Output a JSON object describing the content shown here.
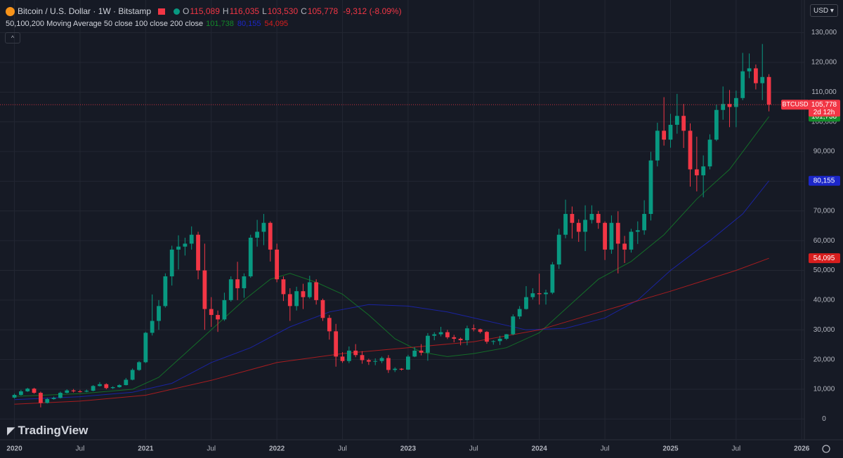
{
  "header": {
    "symbol": "Bitcoin / U.S. Dollar · 1W · Bitstamp",
    "ohlc": [
      {
        "key": "O",
        "value": "115,089"
      },
      {
        "key": "H",
        "value": "116,035"
      },
      {
        "key": "L",
        "value": "103,530"
      },
      {
        "key": "C",
        "value": "105,778"
      }
    ],
    "change": "-9,312 (-8.09%)"
  },
  "indicator": {
    "label": "50,100,200 Moving Average 50 close 100 close 200 close"
  },
  "currency": "USD",
  "brand": "TradingView",
  "chart_data": {
    "type": "candlestick",
    "up_color": "#089981",
    "down_color": "#f23645",
    "xlim": [
      2019.89,
      2026.02
    ],
    "ylim": [
      -7000,
      141000
    ],
    "grid": true,
    "xticks": [
      2020,
      {
        "value": 2020.5,
        "label": "Jul"
      },
      2021,
      {
        "value": 2021.5,
        "label": "Jul"
      },
      2022,
      {
        "value": 2022.5,
        "label": "Jul"
      },
      2023,
      {
        "value": 2023.5,
        "label": "Jul"
      },
      2024,
      {
        "value": 2024.5,
        "label": "Jul"
      },
      2025,
      {
        "value": 2025.5,
        "label": "Jul"
      },
      2026
    ],
    "yticks": [
      0,
      {
        "value": 10000,
        "label": "10,000"
      },
      {
        "value": 20000,
        "label": "20,000"
      },
      {
        "value": 30000,
        "label": "30,000"
      },
      {
        "value": 40000,
        "label": "40,000"
      },
      {
        "value": 50000,
        "label": "50,000"
      },
      {
        "value": 60000,
        "label": "60,000"
      },
      {
        "value": 70000,
        "label": "70,000"
      },
      {
        "value": 80000,
        "label": "80,000"
      },
      {
        "value": 90000,
        "label": "90,000"
      },
      {
        "value": 100000,
        "label": "100,000"
      },
      {
        "value": 110000,
        "label": "110,000"
      },
      {
        "value": 120000,
        "label": "120,000"
      },
      {
        "value": 130000,
        "label": "130,000"
      }
    ],
    "x": [
      2020.0,
      2020.05,
      2020.1,
      2020.15,
      2020.2,
      2020.25,
      2020.3,
      2020.35,
      2020.4,
      2020.45,
      2020.5,
      2020.55,
      2020.6,
      2020.65,
      2020.7,
      2020.75,
      2020.8,
      2020.85,
      2020.9,
      2020.95,
      2021.0,
      2021.05,
      2021.1,
      2021.15,
      2021.2,
      2021.25,
      2021.3,
      2021.35,
      2021.4,
      2021.45,
      2021.5,
      2021.55,
      2021.6,
      2021.65,
      2021.7,
      2021.75,
      2021.8,
      2021.85,
      2021.9,
      2021.95,
      2022.0,
      2022.05,
      2022.1,
      2022.15,
      2022.2,
      2022.25,
      2022.3,
      2022.35,
      2022.4,
      2022.45,
      2022.5,
      2022.55,
      2022.6,
      2022.65,
      2022.7,
      2022.75,
      2022.8,
      2022.85,
      2022.9,
      2022.95,
      2023.0,
      2023.05,
      2023.1,
      2023.15,
      2023.2,
      2023.25,
      2023.3,
      2023.35,
      2023.4,
      2023.45,
      2023.5,
      2023.55,
      2023.6,
      2023.65,
      2023.7,
      2023.75,
      2023.8,
      2023.85,
      2023.9,
      2023.95,
      2024.0,
      2024.05,
      2024.1,
      2024.15,
      2024.2,
      2024.25,
      2024.3,
      2024.35,
      2024.4,
      2024.45,
      2024.5,
      2024.55,
      2024.6,
      2024.65,
      2024.7,
      2024.75,
      2024.8,
      2024.85,
      2024.9,
      2024.95,
      2025.0,
      2025.05,
      2025.1,
      2025.15,
      2025.2,
      2025.25,
      2025.3,
      2025.35,
      2025.4,
      2025.45,
      2025.5,
      2025.55,
      2025.6,
      2025.65,
      2025.7,
      2025.75
    ],
    "ohlc": [
      [
        7200,
        8500,
        6900,
        8100
      ],
      [
        8100,
        9800,
        7900,
        9300
      ],
      [
        9300,
        10500,
        9100,
        10200
      ],
      [
        10200,
        10500,
        8500,
        8800
      ],
      [
        8800,
        9200,
        3900,
        5400
      ],
      [
        5400,
        7100,
        5200,
        6700
      ],
      [
        6700,
        7500,
        6500,
        7100
      ],
      [
        7100,
        9200,
        6900,
        8800
      ],
      [
        8800,
        10000,
        8600,
        9600
      ],
      [
        9600,
        10100,
        8900,
        9300
      ],
      [
        9300,
        9800,
        8900,
        9200
      ],
      [
        9200,
        9900,
        9000,
        9500
      ],
      [
        9500,
        11400,
        9300,
        11100
      ],
      [
        11100,
        12400,
        10900,
        11700
      ],
      [
        11700,
        12000,
        10000,
        10400
      ],
      [
        10400,
        11000,
        10100,
        10700
      ],
      [
        10700,
        11700,
        10500,
        11400
      ],
      [
        11400,
        13800,
        11300,
        13200
      ],
      [
        13200,
        17000,
        13000,
        16500
      ],
      [
        16500,
        19500,
        16200,
        19100
      ],
      [
        19100,
        29300,
        18800,
        29000
      ],
      [
        29000,
        41900,
        28100,
        33000
      ],
      [
        33000,
        40000,
        30000,
        38000
      ],
      [
        38000,
        49000,
        37500,
        48000
      ],
      [
        48000,
        58300,
        44900,
        57000
      ],
      [
        57000,
        61800,
        50300,
        58000
      ],
      [
        58000,
        61000,
        55000,
        59000
      ],
      [
        59000,
        64800,
        57000,
        62000
      ],
      [
        62000,
        63000,
        47000,
        50000
      ],
      [
        50000,
        59000,
        30000,
        37000
      ],
      [
        37000,
        41000,
        31000,
        35000
      ],
      [
        35000,
        36500,
        29300,
        33500
      ],
      [
        33500,
        42500,
        33000,
        40000
      ],
      [
        40000,
        48000,
        39500,
        47000
      ],
      [
        47000,
        52900,
        40000,
        44000
      ],
      [
        44000,
        49000,
        40800,
        48000
      ],
      [
        48000,
        62000,
        47500,
        61000
      ],
      [
        61000,
        67000,
        58000,
        63000
      ],
      [
        63000,
        69000,
        58500,
        66000
      ],
      [
        66000,
        66500,
        53000,
        57000
      ],
      [
        57000,
        59000,
        46000,
        47000
      ],
      [
        47000,
        48000,
        39700,
        42000
      ],
      [
        42000,
        44000,
        33000,
        38000
      ],
      [
        38000,
        44500,
        36500,
        43000
      ],
      [
        43000,
        45500,
        37000,
        41000
      ],
      [
        41000,
        48200,
        40500,
        46000
      ],
      [
        46000,
        47000,
        38500,
        40000
      ],
      [
        40000,
        40500,
        33000,
        34000
      ],
      [
        34000,
        35000,
        26700,
        29500
      ],
      [
        29500,
        32000,
        17600,
        21000
      ],
      [
        21000,
        22500,
        18900,
        19500
      ],
      [
        19500,
        24400,
        18800,
        23000
      ],
      [
        23000,
        25200,
        20800,
        21500
      ],
      [
        21500,
        22800,
        18600,
        19800
      ],
      [
        19800,
        20300,
        18200,
        19300
      ],
      [
        19300,
        20400,
        18100,
        19500
      ],
      [
        19500,
        21000,
        18800,
        20500
      ],
      [
        20500,
        21500,
        15500,
        16500
      ],
      [
        16500,
        17400,
        15800,
        16900
      ],
      [
        16900,
        17100,
        16300,
        16600
      ],
      [
        16600,
        21600,
        16500,
        21000
      ],
      [
        21000,
        24200,
        20800,
        23000
      ],
      [
        23000,
        25200,
        21400,
        22300
      ],
      [
        22300,
        28900,
        19600,
        28000
      ],
      [
        28000,
        29200,
        26500,
        28500
      ],
      [
        28500,
        31000,
        27800,
        29200
      ],
      [
        29200,
        30000,
        26900,
        27500
      ],
      [
        27500,
        28300,
        25800,
        27000
      ],
      [
        27000,
        27400,
        24800,
        26500
      ],
      [
        26500,
        31400,
        24800,
        30500
      ],
      [
        30500,
        31800,
        29500,
        30200
      ],
      [
        30200,
        30400,
        28800,
        29300
      ],
      [
        29300,
        29600,
        25300,
        26000
      ],
      [
        26000,
        26500,
        25000,
        26200
      ],
      [
        26200,
        28000,
        24900,
        27000
      ],
      [
        27000,
        28600,
        26600,
        28500
      ],
      [
        28500,
        35200,
        28200,
        34500
      ],
      [
        34500,
        38000,
        33600,
        37000
      ],
      [
        37000,
        44700,
        36800,
        41000
      ],
      [
        41000,
        44000,
        40200,
        42300
      ],
      [
        42300,
        48900,
        38500,
        42000
      ],
      [
        42000,
        43500,
        38500,
        42500
      ],
      [
        42500,
        52800,
        42000,
        52000
      ],
      [
        52000,
        64000,
        50500,
        62000
      ],
      [
        62000,
        73800,
        60800,
        69000
      ],
      [
        69000,
        71500,
        60700,
        66000
      ],
      [
        66000,
        67200,
        59600,
        63000
      ],
      [
        63000,
        71900,
        56500,
        67000
      ],
      [
        67000,
        71900,
        65800,
        69000
      ],
      [
        69000,
        70000,
        64000,
        66000
      ],
      [
        66000,
        66500,
        53500,
        57000
      ],
      [
        57000,
        68500,
        55600,
        66000
      ],
      [
        66000,
        69900,
        49000,
        59000
      ],
      [
        59000,
        61600,
        52500,
        57000
      ],
      [
        57000,
        64000,
        56000,
        63000
      ],
      [
        63000,
        66500,
        58900,
        63500
      ],
      [
        63500,
        73600,
        62000,
        69000
      ],
      [
        69000,
        89900,
        66800,
        87000
      ],
      [
        87000,
        99700,
        85000,
        97000
      ],
      [
        97000,
        108300,
        92000,
        94000
      ],
      [
        94000,
        102700,
        91300,
        99000
      ],
      [
        99000,
        109400,
        96000,
        102000
      ],
      [
        102000,
        106000,
        91200,
        97000
      ],
      [
        97000,
        99500,
        78200,
        84000
      ],
      [
        84000,
        95000,
        76600,
        82000
      ],
      [
        82000,
        88700,
        74600,
        85000
      ],
      [
        85000,
        95800,
        84000,
        94000
      ],
      [
        94000,
        105800,
        93500,
        104000
      ],
      [
        104000,
        111900,
        100700,
        106000
      ],
      [
        106000,
        110700,
        98200,
        105000
      ],
      [
        105000,
        110500,
        98200,
        108000
      ],
      [
        108000,
        123200,
        107300,
        117000
      ],
      [
        117000,
        123000,
        114700,
        118000
      ],
      [
        118000,
        119300,
        110900,
        113000
      ],
      [
        113000,
        126200,
        107300,
        115089
      ],
      [
        115089,
        116035,
        103530,
        105778
      ]
    ],
    "last_label": "105,778",
    "symbol_label": "BTCUSD",
    "countdown": "2d 12h",
    "moving_averages": [
      {
        "color": "#138a2a",
        "last_label": "101,738",
        "x": [
          2020.0,
          2020.5,
          2020.9,
          2021.1,
          2021.3,
          2021.5,
          2021.75,
          2021.95,
          2022.1,
          2022.3,
          2022.5,
          2022.7,
          2022.9,
          2023.1,
          2023.3,
          2023.5,
          2023.75,
          2024.0,
          2024.2,
          2024.45,
          2024.7,
          2024.95,
          2025.2,
          2025.45,
          2025.75
        ],
        "values": [
          7600,
          8500,
          10000,
          14000,
          22000,
          30000,
          40000,
          47000,
          49000,
          46000,
          42000,
          35000,
          27000,
          22500,
          21000,
          22000,
          24000,
          29000,
          37000,
          47000,
          53000,
          62000,
          74000,
          84000,
          101738
        ]
      },
      {
        "color": "#1c27c9",
        "last_label": "80,155",
        "x": [
          2020.0,
          2020.5,
          2020.9,
          2021.2,
          2021.5,
          2021.8,
          2022.1,
          2022.4,
          2022.7,
          2023.0,
          2023.3,
          2023.6,
          2023.9,
          2024.2,
          2024.5,
          2024.75,
          2025.0,
          2025.3,
          2025.55,
          2025.75
        ],
        "values": [
          6500,
          7500,
          9000,
          12000,
          19000,
          24000,
          31000,
          36000,
          38500,
          38000,
          36000,
          33000,
          30000,
          30500,
          34000,
          40000,
          50000,
          60000,
          69000,
          80155
        ]
      },
      {
        "color": "#d81e1e",
        "last_label": "54,095",
        "x": [
          2020.0,
          2020.5,
          2021.0,
          2021.5,
          2022.0,
          2022.5,
          2023.0,
          2023.5,
          2024.0,
          2024.5,
          2025.0,
          2025.5,
          2025.75
        ],
        "values": [
          5000,
          6000,
          8000,
          13000,
          19000,
          22000,
          24000,
          26000,
          30000,
          36500,
          43000,
          50000,
          54095
        ]
      }
    ]
  }
}
